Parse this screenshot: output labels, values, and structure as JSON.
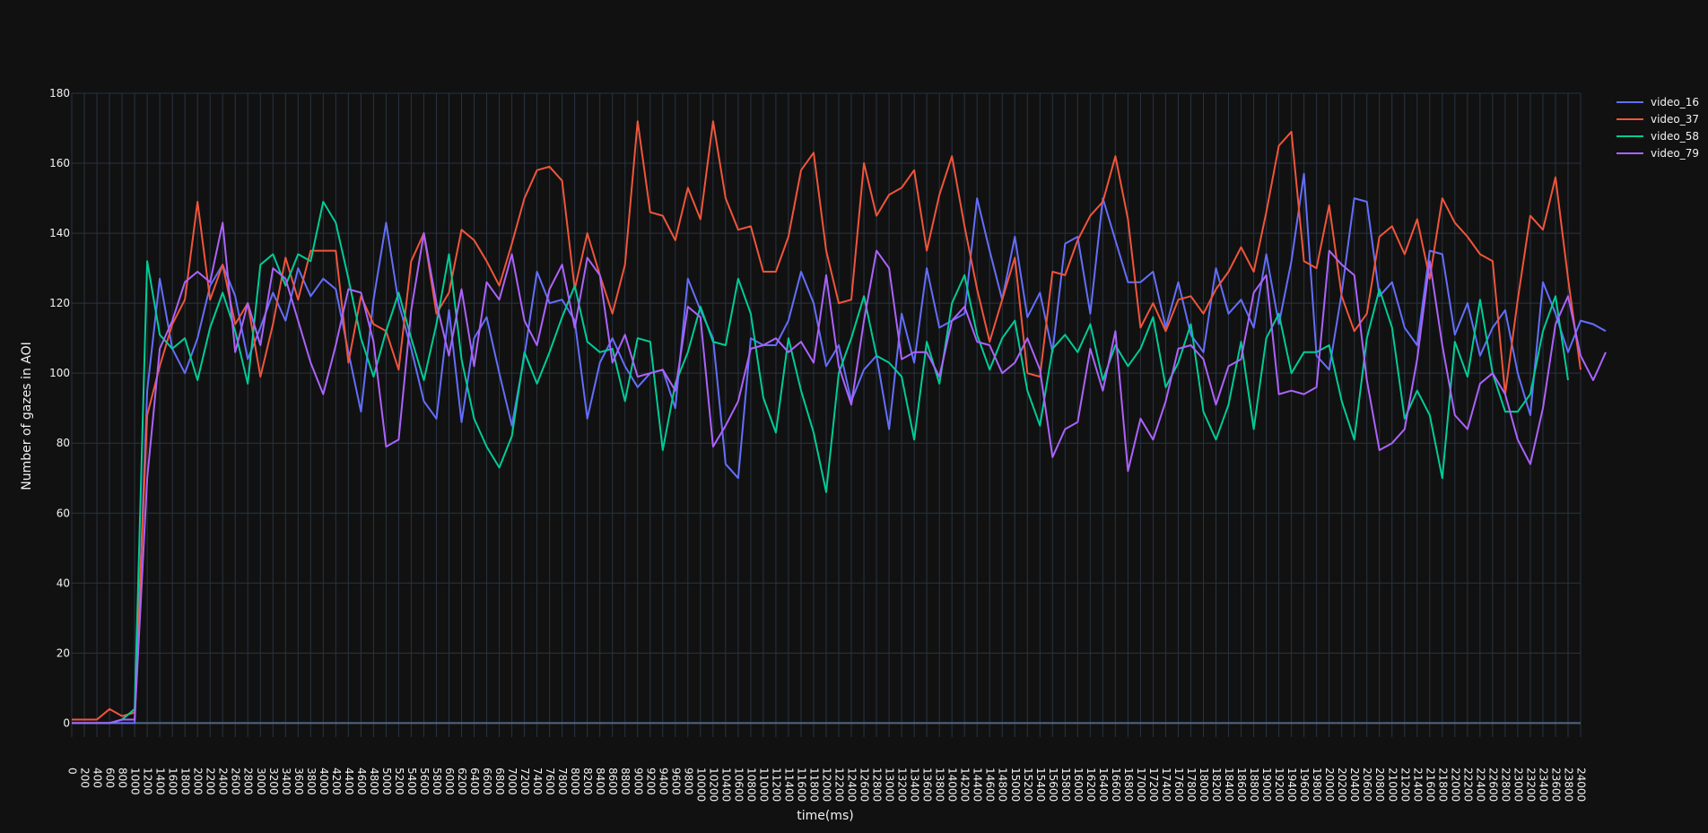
{
  "chart_data": {
    "type": "line",
    "xlabel": "time(ms)",
    "ylabel": "Number of gazes in AOI",
    "xlim": [
      0,
      24000
    ],
    "ylim": [
      -4,
      180
    ],
    "x_step": 200,
    "x_tick_step": 200,
    "y_ticks": [
      0,
      20,
      40,
      60,
      80,
      100,
      120,
      140,
      160,
      180
    ],
    "grid": true,
    "legend_position": "top-right",
    "colors": {
      "background": "#111111",
      "grid": "#283442",
      "zero_line": "#506784",
      "text": "#f2f2f2"
    },
    "series": [
      {
        "name": "video_16",
        "color": "#636efa",
        "values": [
          0,
          0,
          0,
          0,
          0,
          0,
          95,
          127,
          107,
          100,
          110,
          125,
          131,
          122,
          104,
          113,
          123,
          115,
          130,
          122,
          127,
          124,
          106,
          89,
          121,
          143,
          120,
          107,
          92,
          87,
          118,
          86,
          110,
          116,
          100,
          85,
          105,
          129,
          120,
          121,
          115,
          87,
          103,
          110,
          102,
          96,
          100,
          101,
          90,
          127,
          118,
          110,
          74,
          70,
          110,
          108,
          108,
          115,
          129,
          120,
          102,
          108,
          92,
          101,
          105,
          84,
          117,
          103,
          130,
          113,
          115,
          117,
          150,
          135,
          121,
          139,
          116,
          123,
          106,
          137,
          139,
          117,
          150,
          138,
          126,
          126,
          129,
          113,
          126,
          111,
          106,
          130,
          117,
          121,
          113,
          134,
          114,
          132,
          157,
          105,
          101,
          123,
          150,
          149,
          122,
          126,
          113,
          108,
          135,
          134,
          111,
          120,
          105,
          113,
          118,
          100,
          88,
          126,
          117,
          106,
          115,
          114,
          112
        ],
        "labels": {
          "legend": "video_16"
        }
      },
      {
        "name": "video_37",
        "color": "#ef553b",
        "values": [
          1,
          1,
          1,
          4,
          2,
          3,
          88,
          102,
          114,
          121,
          149,
          121,
          131,
          114,
          120,
          99,
          114,
          133,
          121,
          135,
          135,
          135,
          103,
          122,
          114,
          112,
          101,
          132,
          140,
          117,
          123,
          141,
          138,
          132,
          125,
          137,
          150,
          158,
          159,
          155,
          124,
          140,
          128,
          117,
          131,
          172,
          146,
          145,
          138,
          153,
          144,
          172,
          150,
          141,
          142,
          129,
          129,
          139,
          158,
          163,
          135,
          120,
          121,
          160,
          145,
          151,
          153,
          158,
          135,
          151,
          162,
          142,
          124,
          109,
          121,
          133,
          100,
          99,
          129,
          128,
          138,
          145,
          149,
          162,
          144,
          113,
          120,
          112,
          121,
          122,
          117,
          124,
          129,
          136,
          129,
          146,
          165,
          169,
          132,
          130,
          148,
          122,
          112,
          117,
          139,
          142,
          134,
          144,
          127,
          150,
          143,
          139,
          134,
          132,
          94,
          121,
          145,
          141,
          156,
          127,
          101
        ],
        "labels": {
          "legend": "video_37"
        }
      },
      {
        "name": "video_58",
        "color": "#00cc96",
        "values": [
          0,
          0,
          0,
          0,
          1,
          4,
          132,
          111,
          107,
          110,
          98,
          113,
          123,
          112,
          97,
          131,
          134,
          125,
          134,
          132,
          149,
          143,
          127,
          110,
          99,
          112,
          123,
          110,
          98,
          114,
          134,
          104,
          87,
          79,
          73,
          82,
          106,
          97,
          106,
          116,
          125,
          109,
          106,
          107,
          92,
          110,
          109,
          78,
          97,
          106,
          119,
          109,
          108,
          127,
          117,
          93,
          83,
          110,
          95,
          83,
          66,
          100,
          110,
          122,
          105,
          103,
          99,
          81,
          109,
          97,
          120,
          128,
          111,
          101,
          110,
          115,
          95,
          85,
          107,
          111,
          106,
          114,
          98,
          108,
          102,
          107,
          116,
          96,
          103,
          114,
          89,
          81,
          91,
          109,
          84,
          110,
          117,
          100,
          106,
          106,
          108,
          92,
          81,
          110,
          124,
          113,
          87,
          95,
          88,
          70,
          109,
          99,
          121,
          100,
          89,
          89,
          94,
          112,
          122,
          98
        ],
        "labels": {
          "legend": "video_58"
        }
      },
      {
        "name": "video_79",
        "color": "#ab63fa",
        "values": [
          0,
          0,
          0,
          0,
          1,
          1,
          70,
          107,
          115,
          126,
          129,
          126,
          143,
          106,
          120,
          108,
          130,
          127,
          115,
          103,
          94,
          108,
          124,
          123,
          109,
          79,
          81,
          118,
          140,
          120,
          105,
          124,
          102,
          126,
          121,
          134,
          115,
          108,
          124,
          131,
          113,
          133,
          128,
          103,
          111,
          99,
          100,
          101,
          95,
          119,
          116,
          79,
          85,
          92,
          107,
          108,
          110,
          106,
          109,
          103,
          128,
          102,
          91,
          115,
          135,
          130,
          104,
          106,
          106,
          99,
          115,
          119,
          109,
          108,
          100,
          103,
          110,
          101,
          76,
          84,
          86,
          107,
          95,
          112,
          72,
          87,
          81,
          92,
          107,
          108,
          104,
          91,
          102,
          104,
          123,
          128,
          94,
          95,
          94,
          96,
          135,
          131,
          128,
          98,
          78,
          80,
          84,
          104,
          132,
          108,
          88,
          84,
          97,
          100,
          94,
          81,
          74,
          90,
          114,
          122,
          105,
          98,
          106
        ]
      }
    ]
  }
}
